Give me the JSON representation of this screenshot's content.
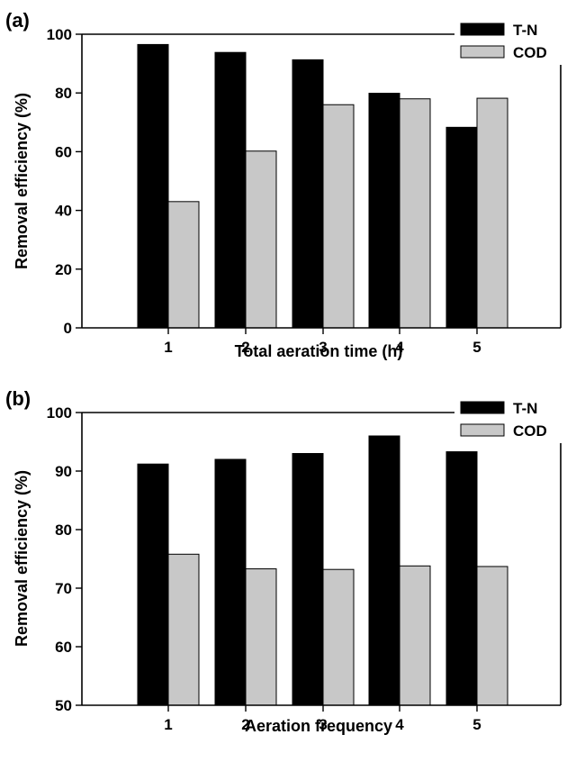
{
  "colors": {
    "tn": "#000000",
    "cod": "#c8c8c8",
    "axis": "#000000",
    "background": "#ffffff"
  },
  "chart_data": [
    {
      "type": "bar",
      "panel_label": "(a)",
      "categories": [
        "1",
        "2",
        "3",
        "4",
        "5"
      ],
      "series": [
        {
          "name": "T-N",
          "values": [
            96.5,
            93.8,
            91.3,
            79.9,
            68.3
          ]
        },
        {
          "name": "COD",
          "values": [
            43.0,
            60.2,
            76.0,
            78.0,
            78.2
          ]
        }
      ],
      "xlabel": "Total aeration time (h)",
      "ylabel": "Removal efficiency (%)",
      "ylim": [
        0,
        100
      ],
      "yticks": [
        "0",
        "20",
        "40",
        "60",
        "80",
        "100"
      ],
      "legend": "top-right",
      "grid": false
    },
    {
      "type": "bar",
      "panel_label": "(b)",
      "categories": [
        "1",
        "2",
        "3",
        "4",
        "5"
      ],
      "series": [
        {
          "name": "T-N",
          "values": [
            91.2,
            92.0,
            93.0,
            96.0,
            93.3
          ]
        },
        {
          "name": "COD",
          "values": [
            75.8,
            73.3,
            73.2,
            73.8,
            73.7
          ]
        }
      ],
      "xlabel": "Aeration frequency",
      "ylabel": "Removal efficiency (%)",
      "ylim": [
        50,
        100
      ],
      "yticks": [
        "50",
        "60",
        "70",
        "80",
        "90",
        "100"
      ],
      "legend": "top-right",
      "grid": false
    }
  ]
}
